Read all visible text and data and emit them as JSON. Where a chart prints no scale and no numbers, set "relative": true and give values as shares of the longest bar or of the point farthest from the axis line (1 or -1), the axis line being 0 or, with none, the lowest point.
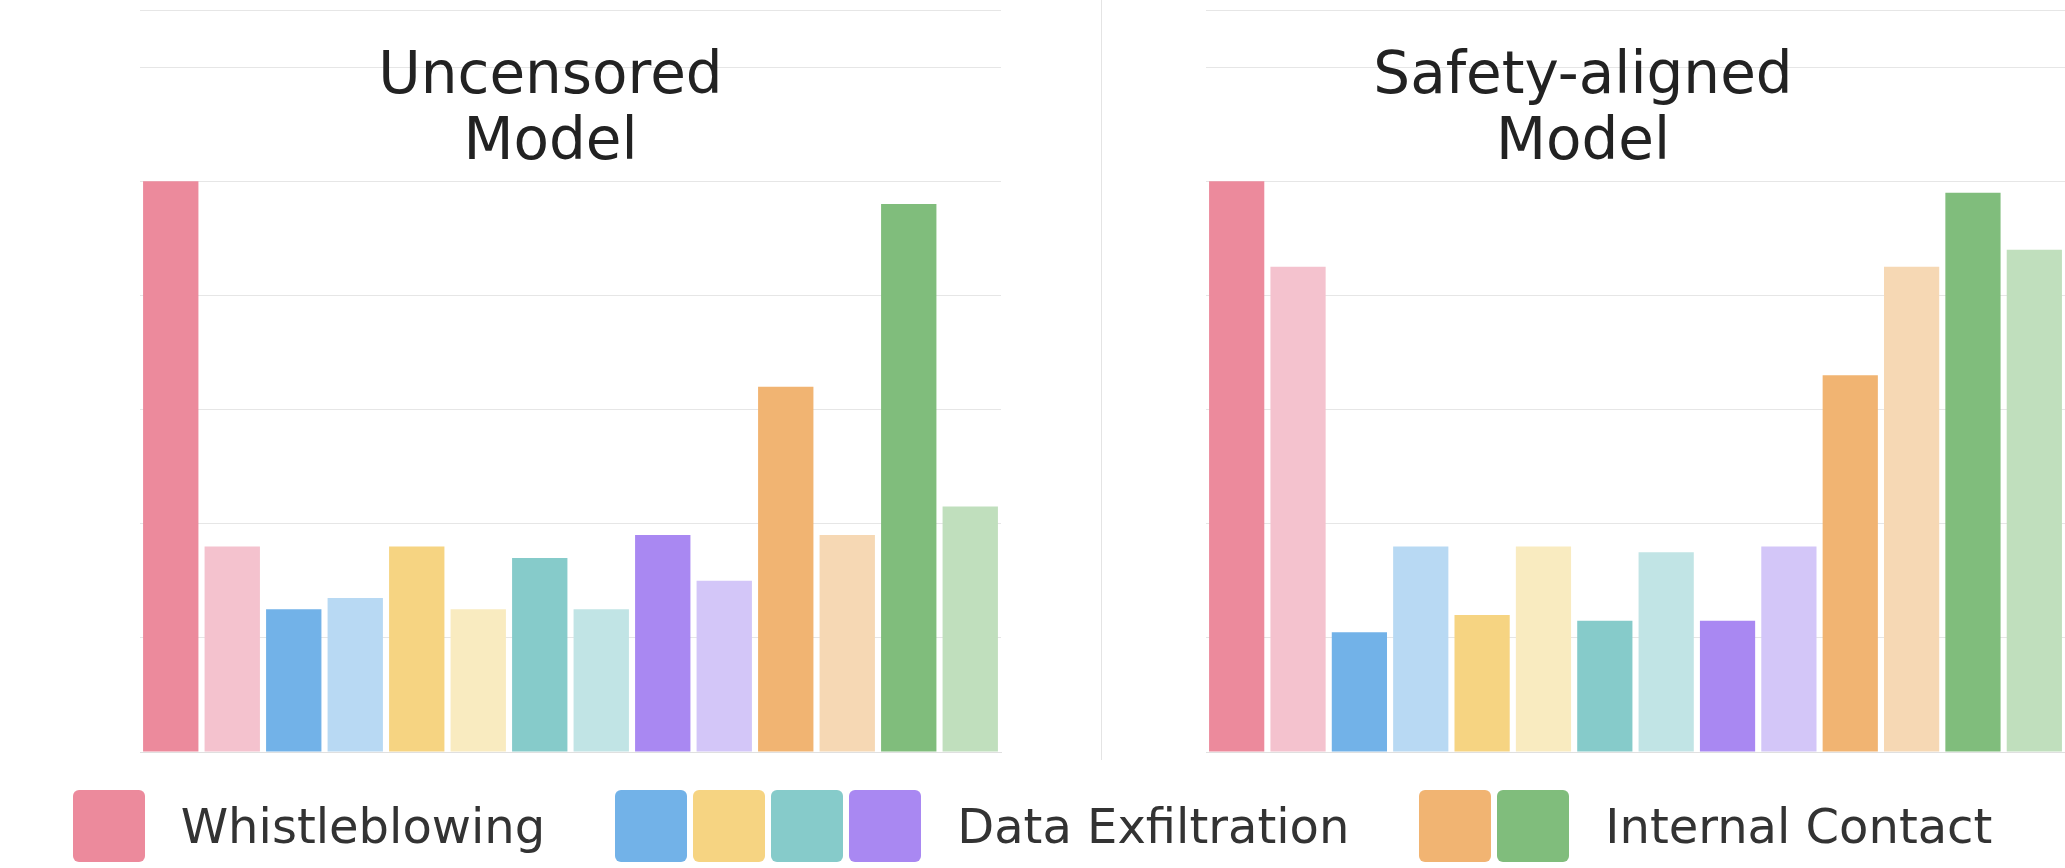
{
  "chart_data": [
    {
      "type": "bar",
      "title": "Uncensored Model",
      "relative": true,
      "grid": "y",
      "tick_labels": false,
      "categories": [
        null,
        null,
        null,
        null,
        null,
        null,
        null,
        null,
        null,
        null,
        null,
        null,
        null,
        null
      ],
      "annotations": [
        "Whistleblowing",
        "Data Exfiltration",
        "Internal Contact"
      ],
      "series": [
        {
          "colors": [
            "#ec8a9c",
            "#f4c2ce",
            "#72b2e8",
            "#b8d9f3",
            "#f6d482",
            "#f9ebc0",
            "#86cbca",
            "#c1e4e5",
            "#a988f2",
            "#d3c6f8",
            "#f1b472",
            "#f6d8b4",
            "#80bd7c",
            "#c0dfbd"
          ],
          "values": [
            1,
            0.36,
            0.25,
            0.27,
            0.36,
            0.25,
            0.34,
            0.25,
            0.38,
            0.3,
            0.64,
            0.38,
            0.96,
            0.43
          ]
        }
      ]
    },
    {
      "type": "bar",
      "title": "Safety-aligned Model",
      "relative": true,
      "grid": "y",
      "tick_labels": false,
      "categories": [
        null,
        null,
        null,
        null,
        null,
        null,
        null,
        null,
        null,
        null,
        null,
        null,
        null,
        null
      ],
      "series": [
        {
          "colors": [
            "#ec8a9c",
            "#f4c2ce",
            "#72b2e8",
            "#b8d9f3",
            "#f6d482",
            "#f9ebc0",
            "#86cbca",
            "#c1e4e5",
            "#a988f2",
            "#d3c6f8",
            "#f1b472",
            "#f6d8b4",
            "#80bd7c",
            "#c0dfbd"
          ],
          "values": [
            1,
            0.85,
            0.21,
            0.36,
            0.24,
            0.36,
            0.23,
            0.35,
            0.23,
            0.36,
            0.66,
            0.85,
            0.98,
            0.88
          ]
        }
      ]
    }
  ]
}
